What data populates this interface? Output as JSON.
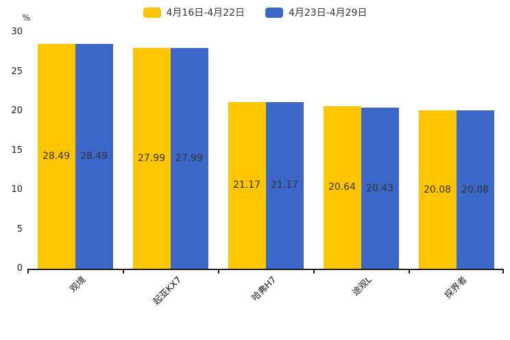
{
  "chart_data": {
    "type": "bar",
    "title": "",
    "categories": [
      "观境",
      "起亚KX7",
      "哈弗H7",
      "途观L",
      "探界者"
    ],
    "series": [
      {
        "name": "4月16日-4月22日",
        "color": "#FDC500",
        "values": [
          28.49,
          27.99,
          21.17,
          20.64,
          20.08
        ]
      },
      {
        "name": "4月23日-4月29日",
        "color": "#3A67C8",
        "values": [
          28.49,
          27.99,
          21.17,
          20.43,
          20.08
        ]
      }
    ],
    "xlabel": "",
    "ylabel": "%",
    "ylim": [
      0,
      30
    ],
    "yticks": [
      0,
      5,
      10,
      15,
      20,
      25,
      30
    ],
    "grid": false,
    "legend_position": "top-center",
    "value_labels": "inside-middle",
    "xlabel_rotation": 45
  }
}
